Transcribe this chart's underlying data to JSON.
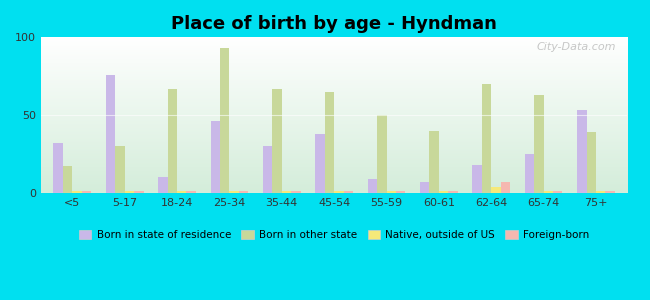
{
  "title": "Place of birth by age - Hyndman",
  "categories": [
    "<5",
    "5-17",
    "18-24",
    "25-34",
    "35-44",
    "45-54",
    "55-59",
    "60-61",
    "62-64",
    "65-74",
    "75+"
  ],
  "series": {
    "Born in state of residence": [
      32,
      76,
      10,
      46,
      30,
      38,
      9,
      7,
      18,
      25,
      53
    ],
    "Born in other state": [
      17,
      30,
      67,
      93,
      67,
      65,
      50,
      40,
      70,
      63,
      39
    ],
    "Native, outside of US": [
      1,
      1,
      1,
      1,
      1,
      1,
      1,
      1,
      4,
      1,
      1
    ],
    "Foreign-born": [
      1,
      1,
      1,
      1,
      1,
      1,
      1,
      1,
      7,
      1,
      1
    ]
  },
  "colors": {
    "Born in state of residence": "#c9b8e8",
    "Born in other state": "#c8d89a",
    "Native, outside of US": "#f5e97a",
    "Foreign-born": "#f5b8b0"
  },
  "ylim": [
    0,
    100
  ],
  "yticks": [
    0,
    50,
    100
  ],
  "outer_background": "#00e0f0",
  "plot_bg_top": "#ffffff",
  "plot_bg_bottom": "#d4edda",
  "bar_width": 0.18,
  "watermark": "City-Data.com",
  "title_fontsize": 13,
  "tick_fontsize": 8,
  "legend_fontsize": 7.5
}
